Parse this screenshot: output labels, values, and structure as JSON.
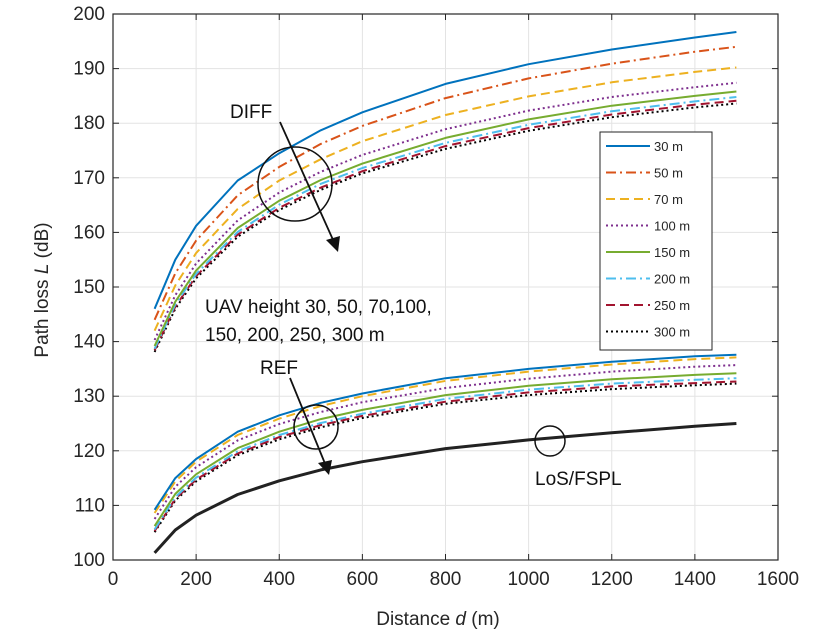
{
  "chart_data": {
    "type": "line",
    "xlabel_pre": "Distance ",
    "xlabel_var": "d",
    "xlabel_post": " (m)",
    "ylabel_pre": "Path loss ",
    "ylabel_var": "L",
    "ylabel_post": " (dB)",
    "xlim": [
      0,
      1600
    ],
    "ylim": [
      100,
      200
    ],
    "xticks": [
      0,
      200,
      400,
      600,
      800,
      1000,
      1200,
      1400,
      1600
    ],
    "yticks": [
      100,
      110,
      120,
      130,
      140,
      150,
      160,
      170,
      180,
      190,
      200
    ],
    "grid": true,
    "legend_position": "right",
    "x": [
      100,
      150,
      200,
      300,
      400,
      500,
      600,
      800,
      1000,
      1200,
      1400,
      1500
    ],
    "series": [
      {
        "name": "30 m",
        "color": "#0072BD",
        "dash": "solid",
        "diff": [
          146,
          155,
          161.2,
          169.5,
          174.5,
          178.7,
          182,
          187.2,
          190.8,
          193.5,
          195.7,
          196.7
        ],
        "ref": [
          109.2,
          115,
          118.5,
          123.5,
          126.5,
          128.8,
          130.5,
          133.3,
          135,
          136.3,
          137.3,
          137.6
        ]
      },
      {
        "name": "50 m",
        "color": "#D95319",
        "dash": "dashdot",
        "diff": [
          144,
          152.5,
          158.5,
          166.8,
          172,
          176.2,
          179.5,
          184.6,
          188.2,
          190.9,
          193.1,
          194
        ]
      },
      {
        "name": "70 m",
        "color": "#EDB120",
        "dash": "dashed",
        "diff": [
          142,
          150.3,
          156.2,
          164.3,
          169.5,
          173.4,
          176.7,
          181.5,
          184.9,
          187.5,
          189.4,
          190.2
        ],
        "ref": [
          108.6,
          114.4,
          118,
          122.9,
          125.9,
          128.2,
          130,
          132.8,
          134.5,
          135.8,
          136.8,
          137.1
        ]
      },
      {
        "name": "100 m",
        "color": "#7E2F8E",
        "dash": "dotted",
        "diff": [
          140.3,
          148.5,
          154.3,
          162.2,
          167.3,
          171.1,
          174.2,
          178.9,
          182.3,
          184.8,
          186.6,
          187.4
        ],
        "ref": [
          107.5,
          113.4,
          117,
          121.9,
          124.9,
          127.1,
          128.9,
          131.5,
          133.2,
          134.5,
          135.4,
          135.7
        ]
      },
      {
        "name": "150 m",
        "color": "#77AC30",
        "dash": "solid",
        "diff": [
          139.2,
          147.3,
          153,
          160.8,
          165.8,
          169.6,
          172.6,
          177.3,
          180.7,
          183.2,
          185,
          185.8
        ],
        "ref": [
          106.2,
          112.1,
          115.7,
          120.5,
          123.5,
          125.8,
          127.5,
          130.2,
          131.9,
          133.1,
          133.9,
          134.2
        ]
      },
      {
        "name": "200 m",
        "color": "#4DBEEE",
        "dash": "dashdot",
        "diff": [
          138.7,
          146.8,
          152.4,
          160.1,
          165.1,
          168.9,
          171.8,
          176.4,
          179.7,
          182.2,
          184,
          184.8
        ],
        "ref": [
          105.6,
          111.5,
          115.1,
          119.9,
          122.9,
          125.1,
          126.8,
          129.5,
          131.2,
          132.3,
          133,
          133.3
        ]
      },
      {
        "name": "250 m",
        "color": "#A2142F",
        "dash": "dashed",
        "diff": [
          138.4,
          146.4,
          152,
          159.6,
          164.5,
          168.2,
          171.2,
          175.8,
          179.1,
          181.6,
          183.4,
          184.1
        ],
        "ref": [
          105.3,
          111.2,
          114.7,
          119.5,
          122.5,
          124.7,
          126.4,
          129,
          130.7,
          131.8,
          132.4,
          132.7
        ]
      },
      {
        "name": "300 m",
        "color": "#000000",
        "dash": "dotted",
        "diff": [
          138.1,
          146,
          151.6,
          159.2,
          164.1,
          167.8,
          170.8,
          175.3,
          178.6,
          181.1,
          182.9,
          183.6
        ],
        "ref": [
          105.1,
          110.9,
          114.4,
          119.2,
          122.1,
          124.3,
          126,
          128.6,
          130.2,
          131.3,
          132,
          132.3
        ]
      }
    ],
    "los_fspl": {
      "color": "#222222",
      "values": [
        101.3,
        105.5,
        108.2,
        112,
        114.5,
        116.5,
        118,
        120.4,
        122,
        123.3,
        124.5,
        125
      ]
    },
    "annotations": {
      "diff": "DIFF",
      "ref": "REF",
      "heights_line1": "UAV height  30, 50, 70,100,",
      "heights_line2": "150, 200, 250, 300 m",
      "los": "LoS/FSPL"
    }
  }
}
